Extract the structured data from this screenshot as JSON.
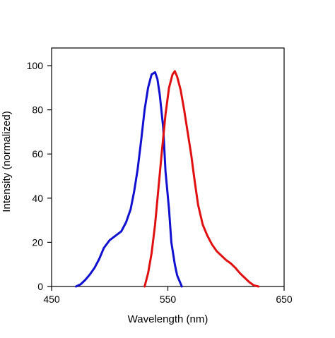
{
  "chart_data": {
    "type": "line",
    "title": "",
    "xlabel": "Wavelength (nm)",
    "ylabel": "Intensity (normalized)",
    "xlim": [
      450,
      650
    ],
    "ylim": [
      0,
      108
    ],
    "x_ticks": [
      450,
      550,
      650
    ],
    "y_ticks": [
      0,
      20,
      40,
      60,
      80,
      100
    ],
    "grid": false,
    "legend": "none",
    "series": [
      {
        "color": "#1010d0",
        "points": [
          [
            471,
            0
          ],
          [
            475,
            1
          ],
          [
            479,
            3
          ],
          [
            483,
            5.5
          ],
          [
            487,
            8.5
          ],
          [
            491,
            12.5
          ],
          [
            495,
            17.5
          ],
          [
            500,
            21
          ],
          [
            505,
            23
          ],
          [
            510,
            25
          ],
          [
            514,
            29
          ],
          [
            518,
            35
          ],
          [
            521,
            43
          ],
          [
            524,
            53
          ],
          [
            527,
            66
          ],
          [
            530,
            80
          ],
          [
            533,
            90
          ],
          [
            536,
            96
          ],
          [
            539,
            97
          ],
          [
            541,
            94
          ],
          [
            543,
            87
          ],
          [
            546,
            72
          ],
          [
            548,
            52
          ],
          [
            551,
            35
          ],
          [
            553,
            20
          ],
          [
            556,
            10
          ],
          [
            558,
            5
          ],
          [
            562,
            0
          ]
        ]
      },
      {
        "color": "#e01010",
        "points": [
          [
            530,
            0
          ],
          [
            533,
            6
          ],
          [
            536,
            15
          ],
          [
            539,
            28
          ],
          [
            542,
            45
          ],
          [
            545,
            62
          ],
          [
            548,
            78
          ],
          [
            551,
            90
          ],
          [
            554,
            96
          ],
          [
            556,
            97.5
          ],
          [
            558,
            95
          ],
          [
            561,
            89
          ],
          [
            564,
            80
          ],
          [
            567,
            70
          ],
          [
            570,
            60
          ],
          [
            573,
            48
          ],
          [
            576,
            37
          ],
          [
            580,
            28
          ],
          [
            584,
            23
          ],
          [
            588,
            19
          ],
          [
            592,
            16
          ],
          [
            596,
            14
          ],
          [
            600,
            12
          ],
          [
            604,
            10.5
          ],
          [
            608,
            8.5
          ],
          [
            612,
            6
          ],
          [
            616,
            4
          ],
          [
            620,
            2
          ],
          [
            624,
            0.5
          ],
          [
            628,
            0
          ]
        ]
      }
    ]
  }
}
